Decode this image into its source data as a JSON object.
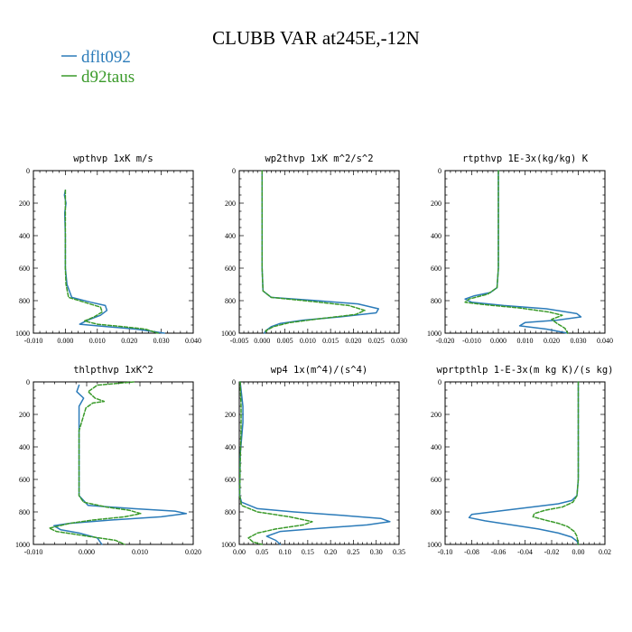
{
  "title": "CLUBB VAR at245E,-12N",
  "legend": [
    {
      "label": "dflt092",
      "color": "#2b7bb9",
      "dash": "solid"
    },
    {
      "label": "d92taus",
      "color": "#3a9a2a",
      "dash": "dashed"
    }
  ],
  "chart_data": [
    {
      "type": "line",
      "title": "wpthvp  1xK m/s",
      "xlim": [
        -0.01,
        0.04
      ],
      "ylim": [
        1000,
        0
      ],
      "xticks": [
        "-0.010",
        "0.000",
        "0.010",
        "0.020",
        "0.030",
        "0.040"
      ],
      "yticks": [
        "0",
        "200",
        "400",
        "600",
        "800",
        "1000"
      ],
      "series": [
        {
          "name": "dflt092",
          "points": [
            [
              0.0,
              120
            ],
            [
              -0.0003,
              150
            ],
            [
              0.0002,
              200
            ],
            [
              -0.0002,
              260
            ],
            [
              0.0,
              400
            ],
            [
              0.0,
              600
            ],
            [
              0.0005,
              700
            ],
            [
              0.002,
              780
            ],
            [
              0.008,
              810
            ],
            [
              0.0125,
              830
            ],
            [
              0.013,
              860
            ],
            [
              0.011,
              890
            ],
            [
              0.007,
              920
            ],
            [
              0.0045,
              945
            ],
            [
              0.01,
              955
            ],
            [
              0.022,
              975
            ],
            [
              0.031,
              1000
            ]
          ]
        },
        {
          "name": "d92taus",
          "points": [
            [
              0.0,
              120
            ],
            [
              0.0,
              200
            ],
            [
              0.0,
              400
            ],
            [
              0.0,
              600
            ],
            [
              0.0002,
              700
            ],
            [
              0.001,
              780
            ],
            [
              0.006,
              810
            ],
            [
              0.011,
              840
            ],
            [
              0.0115,
              870
            ],
            [
              0.009,
              900
            ],
            [
              0.006,
              925
            ],
            [
              0.01,
              945
            ],
            [
              0.018,
              960
            ],
            [
              0.025,
              975
            ],
            [
              0.029,
              1000
            ]
          ]
        }
      ]
    },
    {
      "type": "line",
      "title": "wp2thvp  1xK m^2/s^2",
      "xlim": [
        -0.005,
        0.03
      ],
      "ylim": [
        1000,
        0
      ],
      "xticks": [
        "-0.005",
        "0.000",
        "0.005",
        "0.010",
        "0.015",
        "0.020",
        "0.025",
        "0.030"
      ],
      "yticks": [
        "0",
        "200",
        "400",
        "600",
        "800",
        "1000"
      ],
      "series": [
        {
          "name": "dflt092",
          "points": [
            [
              0.0,
              0
            ],
            [
              0.0,
              200
            ],
            [
              0.0,
              400
            ],
            [
              0.0,
              600
            ],
            [
              0.0002,
              740
            ],
            [
              0.002,
              780
            ],
            [
              0.012,
              800
            ],
            [
              0.021,
              820
            ],
            [
              0.0255,
              850
            ],
            [
              0.025,
              875
            ],
            [
              0.017,
              900
            ],
            [
              0.009,
              920
            ],
            [
              0.004,
              940
            ],
            [
              0.002,
              960
            ],
            [
              0.0008,
              985
            ],
            [
              0.0005,
              1000
            ]
          ]
        },
        {
          "name": "d92taus",
          "points": [
            [
              0.0,
              0
            ],
            [
              0.0,
              200
            ],
            [
              0.0,
              400
            ],
            [
              0.0,
              600
            ],
            [
              0.0002,
              740
            ],
            [
              0.002,
              780
            ],
            [
              0.011,
              805
            ],
            [
              0.019,
              830
            ],
            [
              0.0225,
              860
            ],
            [
              0.0205,
              885
            ],
            [
              0.013,
              910
            ],
            [
              0.006,
              935
            ],
            [
              0.0025,
              960
            ],
            [
              0.0008,
              985
            ],
            [
              0.001,
              1000
            ]
          ]
        }
      ]
    },
    {
      "type": "line",
      "title": "rtpthvp  1E-3x(kg/kg) K",
      "xlim": [
        -0.02,
        0.04
      ],
      "ylim": [
        1000,
        0
      ],
      "xticks": [
        "-0.020",
        "-0.010",
        "0.000",
        "0.010",
        "0.020",
        "0.030",
        "0.040"
      ],
      "yticks": [
        "0",
        "200",
        "400",
        "600",
        "800",
        "1000"
      ],
      "series": [
        {
          "name": "dflt092",
          "points": [
            [
              0.0,
              0
            ],
            [
              0.0,
              200
            ],
            [
              0.0,
              400
            ],
            [
              0.0,
              600
            ],
            [
              -0.0005,
              720
            ],
            [
              -0.003,
              750
            ],
            [
              -0.009,
              770
            ],
            [
              -0.0125,
              790
            ],
            [
              -0.01,
              810
            ],
            [
              0.002,
              830
            ],
            [
              0.018,
              850
            ],
            [
              0.0295,
              880
            ],
            [
              0.031,
              900
            ],
            [
              0.022,
              920
            ],
            [
              0.01,
              935
            ],
            [
              0.008,
              955
            ],
            [
              0.018,
              975
            ],
            [
              0.026,
              1000
            ]
          ]
        },
        {
          "name": "d92taus",
          "points": [
            [
              0.0,
              0
            ],
            [
              0.0,
              200
            ],
            [
              0.0,
              400
            ],
            [
              0.0,
              600
            ],
            [
              -0.0005,
              720
            ],
            [
              -0.004,
              760
            ],
            [
              -0.011,
              790
            ],
            [
              -0.0125,
              810
            ],
            [
              -0.005,
              825
            ],
            [
              0.008,
              845
            ],
            [
              0.019,
              870
            ],
            [
              0.024,
              890
            ],
            [
              0.02,
              915
            ],
            [
              0.022,
              940
            ],
            [
              0.025,
              970
            ],
            [
              0.026,
              1000
            ]
          ]
        }
      ]
    },
    {
      "type": "line",
      "title": "thlpthvp  1xK^2",
      "xlim": [
        -0.01,
        0.025
      ],
      "ylim": [
        1000,
        0
      ],
      "xticks": [
        "-0.010",
        "0.000",
        "0.010",
        "0.020"
      ],
      "yticks": [
        "0",
        "200",
        "400",
        "600",
        "800",
        "1000"
      ],
      "series": [
        {
          "name": "dflt092",
          "points": [
            [
              0.0,
              20
            ],
            [
              -0.0005,
              60
            ],
            [
              0.001,
              100
            ],
            [
              0.0,
              150
            ],
            [
              0.0,
              300
            ],
            [
              0.0,
              500
            ],
            [
              0.0,
              700
            ],
            [
              0.002,
              760
            ],
            [
              0.012,
              780
            ],
            [
              0.021,
              795
            ],
            [
              0.0235,
              810
            ],
            [
              0.018,
              830
            ],
            [
              0.007,
              850
            ],
            [
              -0.002,
              870
            ],
            [
              -0.0055,
              885
            ],
            [
              -0.004,
              910
            ],
            [
              0.0,
              930
            ],
            [
              0.004,
              960
            ],
            [
              0.005,
              1000
            ]
          ]
        },
        {
          "name": "d92taus",
          "points": [
            [
              0.012,
              0
            ],
            [
              0.004,
              20
            ],
            [
              0.002,
              60
            ],
            [
              0.0035,
              100
            ],
            [
              0.0055,
              120
            ],
            [
              0.003,
              130
            ],
            [
              0.0015,
              160
            ],
            [
              0.0,
              300
            ],
            [
              0.0,
              500
            ],
            [
              0.0,
              700
            ],
            [
              0.001,
              740
            ],
            [
              0.006,
              770
            ],
            [
              0.011,
              790
            ],
            [
              0.0135,
              810
            ],
            [
              0.01,
              830
            ],
            [
              0.003,
              850
            ],
            [
              -0.002,
              870
            ],
            [
              -0.0065,
              900
            ],
            [
              -0.005,
              920
            ],
            [
              0.002,
              950
            ],
            [
              0.008,
              975
            ],
            [
              0.01,
              1000
            ]
          ]
        }
      ]
    },
    {
      "type": "line",
      "title": "wp4  1x(m^4)/(s^4)",
      "xlim": [
        0.0,
        0.35
      ],
      "ylim": [
        1000,
        0
      ],
      "xticks": [
        "0.00",
        "0.05",
        "0.10",
        "0.15",
        "0.20",
        "0.25",
        "0.30",
        "0.35"
      ],
      "yticks": [
        "0",
        "200",
        "400",
        "600",
        "800",
        "1000"
      ],
      "series": [
        {
          "name": "dflt092",
          "points": [
            [
              0.002,
              0
            ],
            [
              0.008,
              150
            ],
            [
              0.008,
              250
            ],
            [
              0.005,
              350
            ],
            [
              0.002,
              450
            ],
            [
              0.001,
              700
            ],
            [
              0.005,
              740
            ],
            [
              0.04,
              780
            ],
            [
              0.12,
              800
            ],
            [
              0.22,
              820
            ],
            [
              0.31,
              840
            ],
            [
              0.33,
              860
            ],
            [
              0.28,
              880
            ],
            [
              0.18,
              900
            ],
            [
              0.09,
              920
            ],
            [
              0.06,
              950
            ],
            [
              0.08,
              975
            ],
            [
              0.09,
              1000
            ]
          ]
        },
        {
          "name": "d92taus",
          "points": [
            [
              0.002,
              0
            ],
            [
              0.004,
              150
            ],
            [
              0.004,
              300
            ],
            [
              0.002,
              500
            ],
            [
              0.001,
              700
            ],
            [
              0.005,
              760
            ],
            [
              0.04,
              800
            ],
            [
              0.11,
              830
            ],
            [
              0.16,
              860
            ],
            [
              0.14,
              880
            ],
            [
              0.08,
              905
            ],
            [
              0.04,
              930
            ],
            [
              0.02,
              960
            ],
            [
              0.03,
              985
            ],
            [
              0.05,
              1000
            ]
          ]
        }
      ]
    },
    {
      "type": "line",
      "title": "wprtpthlp  1-E-3x(m kg K)/(s kg)",
      "xlim": [
        -0.1,
        0.02
      ],
      "ylim": [
        1000,
        0
      ],
      "xticks": [
        "-0.10",
        "-0.08",
        "-0.06",
        "-0.04",
        "-0.02",
        "0.00",
        "0.02"
      ],
      "yticks": [
        "0",
        "200",
        "400",
        "600",
        "800",
        "1000"
      ],
      "series": [
        {
          "name": "dflt092",
          "points": [
            [
              0.0,
              0
            ],
            [
              0.0,
              200
            ],
            [
              0.0,
              400
            ],
            [
              0.0,
              600
            ],
            [
              -0.001,
              700
            ],
            [
              -0.005,
              730
            ],
            [
              -0.015,
              750
            ],
            [
              -0.035,
              770
            ],
            [
              -0.06,
              795
            ],
            [
              -0.08,
              815
            ],
            [
              -0.082,
              835
            ],
            [
              -0.07,
              855
            ],
            [
              -0.05,
              880
            ],
            [
              -0.03,
              905
            ],
            [
              -0.015,
              930
            ],
            [
              -0.005,
              955
            ],
            [
              -0.001,
              980
            ],
            [
              0.0,
              1000
            ]
          ]
        },
        {
          "name": "d92taus",
          "points": [
            [
              0.0,
              0
            ],
            [
              0.0,
              200
            ],
            [
              0.0,
              400
            ],
            [
              0.0,
              600
            ],
            [
              -0.001,
              700
            ],
            [
              -0.004,
              740
            ],
            [
              -0.012,
              770
            ],
            [
              -0.025,
              790
            ],
            [
              -0.033,
              810
            ],
            [
              -0.034,
              830
            ],
            [
              -0.025,
              850
            ],
            [
              -0.015,
              870
            ],
            [
              -0.008,
              890
            ],
            [
              -0.003,
              920
            ],
            [
              -0.001,
              950
            ],
            [
              0.0,
              1000
            ]
          ]
        }
      ]
    }
  ]
}
